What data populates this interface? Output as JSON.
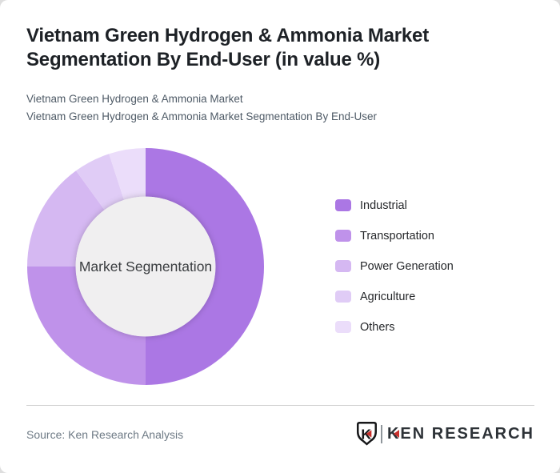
{
  "header": {
    "title": "Vietnam Green Hydrogen & Ammonia Market Segmentation By End-User (in value %)",
    "subtitles": [
      "Vietnam Green Hydrogen & Ammonia Market",
      "Vietnam Green Hydrogen & Ammonia Market Segmentation By End-User"
    ]
  },
  "chart_data": {
    "type": "pie",
    "variant": "donut",
    "title": "Vietnam Green Hydrogen & Ammonia Market Segmentation By End-User (in value %)",
    "center_label": "Market Segmentation",
    "categories": [
      "Industrial",
      "Transportation",
      "Power Generation",
      "Agriculture",
      "Others"
    ],
    "values": [
      50,
      25,
      15,
      5,
      5
    ],
    "unit": "%",
    "colors": [
      "#ab77e4",
      "#bf92ea",
      "#d5b8f2",
      "#e0ccf6",
      "#ebddfa"
    ],
    "start_angle_deg": 0,
    "direction": "clockwise",
    "inner_radius_ratio": 0.59,
    "hole_color": "#f0eff0",
    "legend_position": "right",
    "data_labels_shown": false
  },
  "footer": {
    "source": "Source: Ken Research Analysis",
    "brand_shield_letter": "K",
    "brand_first_letter": "K",
    "brand_rest": "EN RESEARCH",
    "brand_accent_color": "#c9302c"
  }
}
